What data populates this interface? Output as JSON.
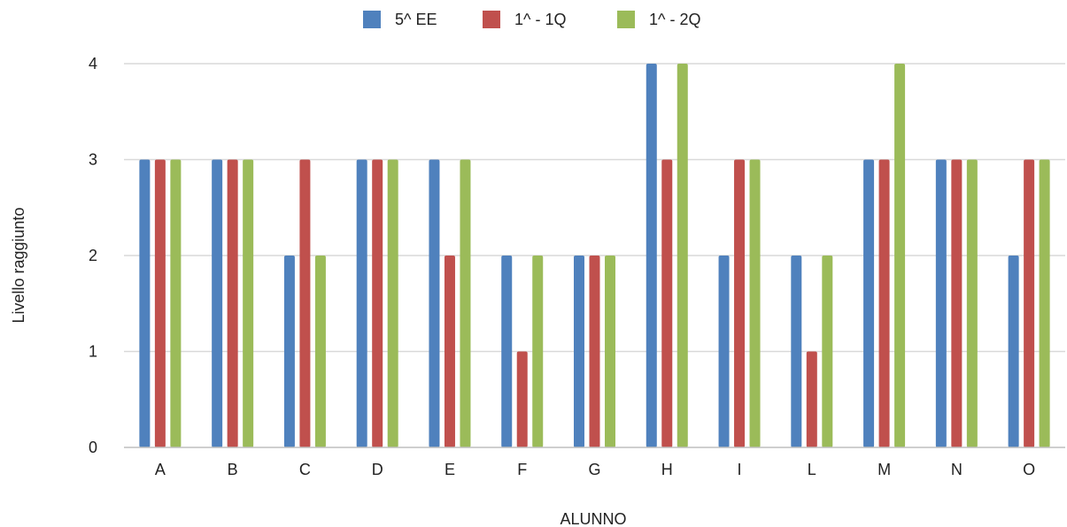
{
  "chart_data": {
    "type": "bar",
    "title": "",
    "xlabel": "ALUNNO",
    "ylabel": "Livello raggiunto",
    "ylim": [
      0,
      4
    ],
    "yticks": [
      0,
      1,
      2,
      3,
      4
    ],
    "grid": true,
    "legend_position": "top-center",
    "categories": [
      "A",
      "B",
      "C",
      "D",
      "E",
      "F",
      "G",
      "H",
      "I",
      "L",
      "M",
      "N",
      "O"
    ],
    "series": [
      {
        "name": "5^ EE",
        "color": "#4f81bd",
        "values": [
          3,
          3,
          2,
          3,
          3,
          2,
          2,
          4,
          2,
          2,
          3,
          3,
          2
        ]
      },
      {
        "name": "1^ - 1Q",
        "color": "#c0504d",
        "values": [
          3,
          3,
          3,
          3,
          2,
          1,
          2,
          3,
          3,
          1,
          3,
          3,
          3
        ]
      },
      {
        "name": "1^ - 2Q",
        "color": "#9bbb59",
        "values": [
          3,
          3,
          2,
          3,
          3,
          2,
          2,
          4,
          3,
          2,
          4,
          3,
          3
        ]
      }
    ]
  }
}
